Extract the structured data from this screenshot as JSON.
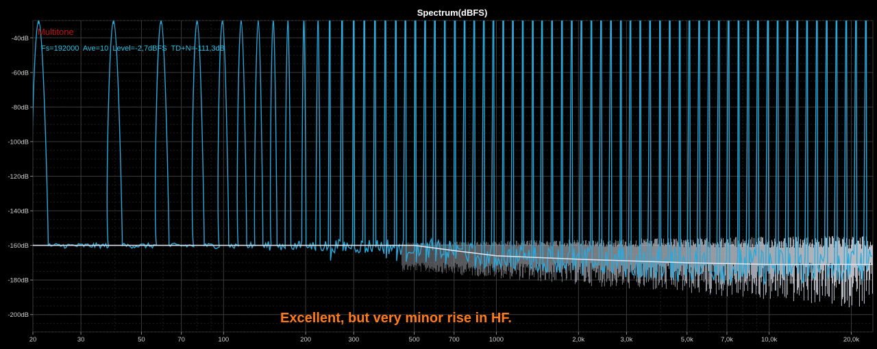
{
  "chart_data": {
    "type": "line",
    "title": "Spectrum(dBFS)",
    "x_scale": "log",
    "xlim": [
      20,
      24000
    ],
    "ylim": [
      -210,
      -30
    ],
    "y_ticks": [
      {
        "value": -40,
        "label": "-40dB"
      },
      {
        "value": -60,
        "label": "-60dB"
      },
      {
        "value": -80,
        "label": "-80dB"
      },
      {
        "value": -100,
        "label": "-100dB"
      },
      {
        "value": -120,
        "label": "-120dB"
      },
      {
        "value": -140,
        "label": "-140dB"
      },
      {
        "value": -160,
        "label": "-160dB"
      },
      {
        "value": -180,
        "label": "-180dB"
      },
      {
        "value": -200,
        "label": "-200dB"
      }
    ],
    "x_ticks": [
      {
        "value": 20,
        "label": "20"
      },
      {
        "value": 30,
        "label": "30"
      },
      {
        "value": 50,
        "label": "50"
      },
      {
        "value": 70,
        "label": "70"
      },
      {
        "value": 100,
        "label": "100"
      },
      {
        "value": 200,
        "label": "200"
      },
      {
        "value": 300,
        "label": "300"
      },
      {
        "value": 500,
        "label": "500"
      },
      {
        "value": 700,
        "label": "700"
      },
      {
        "value": 1000,
        "label": "1000"
      },
      {
        "value": 2000,
        "label": "2,0k"
      },
      {
        "value": 3000,
        "label": "3,0k"
      },
      {
        "value": 5000,
        "label": "5,0k"
      },
      {
        "value": 7000,
        "label": "7,0k"
      },
      {
        "value": 10000,
        "label": "10,0k"
      },
      {
        "value": 20000,
        "label": "20,0k"
      }
    ],
    "grid": true,
    "legend": {
      "position": "top-left",
      "name": "Multitone",
      "info": "Fs=192000  Ave=10  Level=-2,7dBFS  TD+N=-111,3dB"
    },
    "annotation": "Excellent, but very minor rise in HF.",
    "series": [
      {
        "role": "multitone-spectrum",
        "color": "#2aa9dc",
        "tone_level_db": -30,
        "noise_floor_db": -160,
        "tone_frequencies_hz": [
          21,
          39.5,
          59,
          80,
          99,
          116,
          134,
          152,
          172,
          197,
          222,
          245,
          272,
          300,
          328,
          359,
          392,
          428,
          464,
          505,
          548,
          595,
          647,
          705,
          765,
          830,
          900,
          975,
          1060,
          1150,
          1250,
          1360,
          1470,
          1600,
          1740,
          1890,
          2050,
          2230,
          2420,
          2630,
          2860,
          3100,
          3370,
          3660,
          3980,
          4320,
          4700,
          5100,
          5540,
          6020,
          6540,
          7100,
          7720,
          8380,
          9100,
          9890,
          10740,
          11670,
          12680,
          13770,
          14960,
          16250,
          17650,
          19170,
          20820,
          22620
        ]
      },
      {
        "role": "noise-floor",
        "color": "#dde3ec",
        "points": [
          [
            20,
            -160
          ],
          [
            500,
            -160
          ],
          [
            700,
            -163
          ],
          [
            1000,
            -166
          ],
          [
            2000,
            -168
          ],
          [
            5000,
            -170
          ],
          [
            10000,
            -171
          ],
          [
            20000,
            -171
          ],
          [
            24000,
            -171
          ]
        ]
      }
    ]
  }
}
